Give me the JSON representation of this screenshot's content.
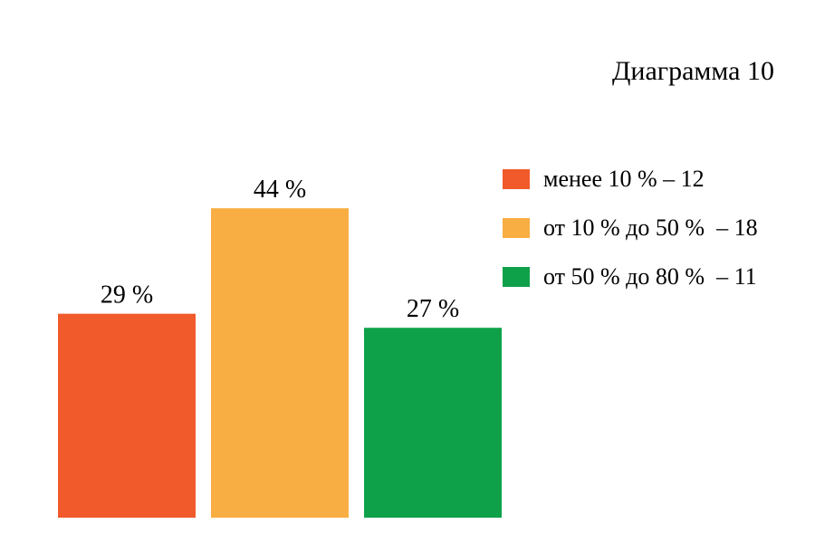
{
  "chart_data": {
    "type": "bar",
    "title": "Диаграмма 10",
    "xlabel": "",
    "ylabel": "",
    "ylim": [
      0,
      50
    ],
    "grid": false,
    "legend_position": "right",
    "categories": [
      "менее 10 % – 12",
      "от 10 % до 50 %  – 18",
      "от 50 % до 80 %  – 11"
    ],
    "values": [
      29,
      44,
      27
    ],
    "value_labels": [
      "29 %",
      "44 %",
      "27 %"
    ],
    "colors": [
      "#f15a2b",
      "#f8ae42",
      "#0fa14a"
    ]
  }
}
